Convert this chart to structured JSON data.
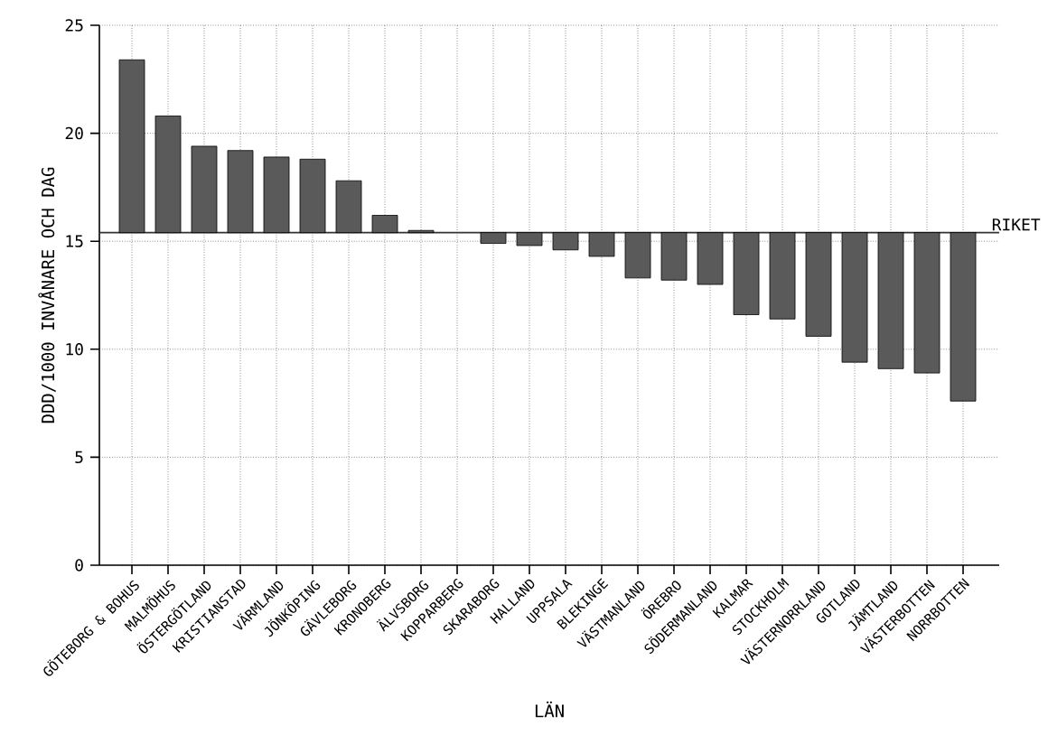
{
  "chart_data": {
    "type": "bar",
    "xlabel": "LÄN",
    "ylabel": "DDD/1000 INVÅNARE OCH DAG",
    "categories": [
      "GÖTEBORG & BOHUS",
      "MALMÖHUS",
      "ÖSTERGÖTLAND",
      "KRISTIANSTAD",
      "VÄRMLAND",
      "JÖNKÖPING",
      "GÄVLEBORG",
      "KRONOBERG",
      "ÄLVSBORG",
      "KOPPARBERG",
      "SKARABORG",
      "HALLAND",
      "UPPSALA",
      "BLEKINGE",
      "VÄSTMANLAND",
      "ÖREBRO",
      "SÖDERMANLAND",
      "KALMAR",
      "STOCKHOLM",
      "VÄSTERNORRLAND",
      "GOTLAND",
      "JÄMTLAND",
      "VÄSTERBOTTEN",
      "NORRBOTTEN"
    ],
    "base": [
      15.4,
      15.4,
      15.4,
      15.4,
      15.4,
      15.4,
      15.4,
      15.4,
      15.4,
      null,
      15.4,
      15.4,
      15.4,
      15.4,
      15.4,
      15.4,
      15.4,
      15.4,
      15.4,
      15.4,
      15.4,
      15.4,
      15.4,
      15.4
    ],
    "values": [
      8.0,
      5.4,
      4.0,
      3.8,
      3.5,
      3.4,
      2.4,
      0.8,
      0.1,
      null,
      -0.5,
      -0.6,
      -0.8,
      -1.1,
      -2.1,
      -2.2,
      -2.4,
      -3.8,
      -4.0,
      -4.8,
      -6.0,
      -6.3,
      -6.5,
      -7.8
    ],
    "color": "#5a5a5a",
    "ylim": [
      0,
      25
    ],
    "yticks": [
      0,
      5,
      10,
      15,
      20,
      25
    ],
    "grid": true,
    "ref_lines": [
      {
        "axis": "y",
        "value": 15.4,
        "label": "RIKET",
        "color": "#333333"
      }
    ]
  }
}
